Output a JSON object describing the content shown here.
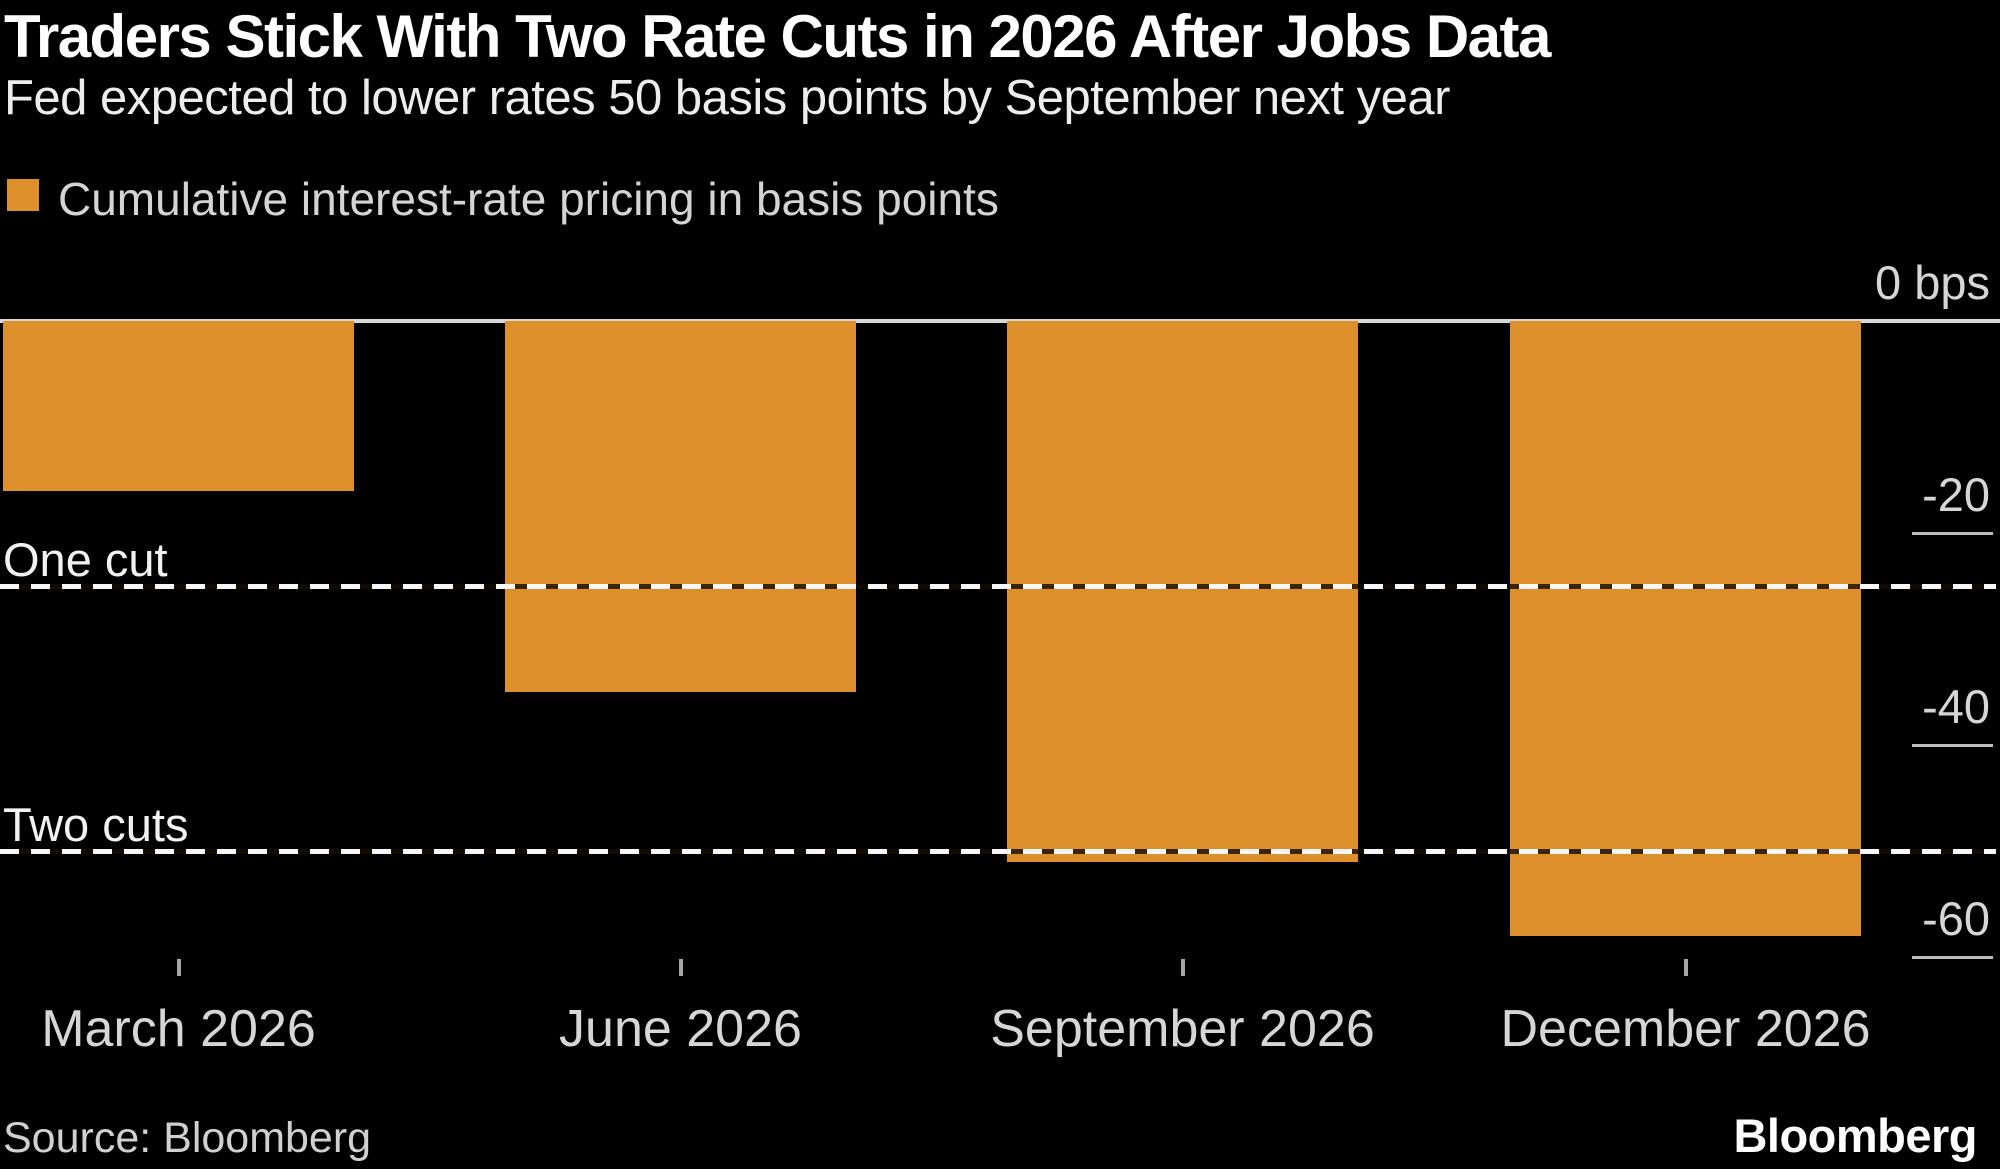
{
  "header": {
    "title": "Traders Stick With Two Rate Cuts in 2026 After Jobs Data",
    "subtitle": "Fed expected to lower rates 50 basis points by September next year",
    "legend_label": "Cumulative interest-rate pricing in basis points"
  },
  "chart_data": {
    "type": "bar",
    "title": "Traders Stick With Two Rate Cuts in 2026 After Jobs Data",
    "subtitle": "Fed expected to lower rates 50 basis points by September next year",
    "legend": "Cumulative interest-rate pricing in basis points",
    "categories": [
      "March 2026",
      "June 2026",
      "September 2026",
      "December 2026"
    ],
    "values": [
      -16,
      -35,
      -51,
      -58
    ],
    "unit": "bps",
    "ylim": [
      0,
      -61
    ],
    "yticks": [
      {
        "value": 0,
        "label": "0 bps"
      },
      {
        "value": -20,
        "label": "-20"
      },
      {
        "value": -40,
        "label": "-40"
      },
      {
        "value": -60,
        "label": "-60"
      }
    ],
    "reference_lines": [
      {
        "label": "One cut",
        "value": -25
      },
      {
        "label": "Two cuts",
        "value": -50
      }
    ],
    "bar_color": "#DD8F2B",
    "background_color": "#000000",
    "legend_position": "top-left",
    "axis_label_side": "right",
    "grid": "dashed-reference-lines"
  },
  "footer": {
    "source": "Source: Bloomberg",
    "logo": "Bloomberg"
  }
}
